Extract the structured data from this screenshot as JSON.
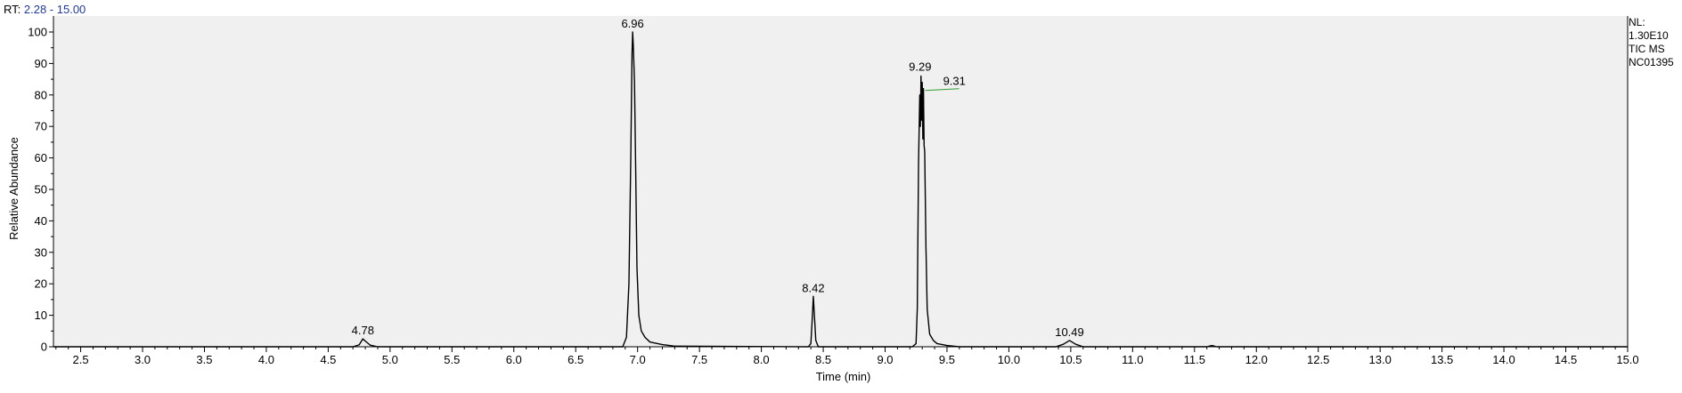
{
  "header": {
    "rt_prefix": "RT:",
    "rt_range": "2.28 - 15.00"
  },
  "info": {
    "nl_label": "NL:",
    "nl_value": "1.30E10",
    "scan_filter": "TIC  MS",
    "file_name": "NC01395"
  },
  "colors": {
    "plot_background": "#f0f0f0",
    "trace": "#000000",
    "annotation_line": "#2e9e2e",
    "rt_range_text": "#1f3a9e"
  },
  "chart_data": {
    "type": "line",
    "xlabel": "Time (min)",
    "ylabel": "Relative Abundance",
    "xlim": [
      2.28,
      15.0
    ],
    "ylim": [
      0,
      100
    ],
    "x_ticks": [
      "2.5",
      "3.0",
      "3.5",
      "4.0",
      "4.5",
      "5.0",
      "5.5",
      "6.0",
      "6.5",
      "7.0",
      "7.5",
      "8.0",
      "8.5",
      "9.0",
      "9.5",
      "10.0",
      "10.5",
      "11.0",
      "11.5",
      "12.0",
      "12.5",
      "13.0",
      "13.5",
      "14.0",
      "14.5",
      "15.0"
    ],
    "y_ticks": [
      "0",
      "10",
      "20",
      "30",
      "40",
      "50",
      "60",
      "70",
      "80",
      "90",
      "100"
    ],
    "grid": false,
    "peak_labels": [
      {
        "rt": "4.78",
        "x": 4.78,
        "y": 2.5
      },
      {
        "rt": "6.96",
        "x": 6.96,
        "y": 100
      },
      {
        "rt": "8.42",
        "x": 8.42,
        "y": 16
      },
      {
        "rt": "9.29",
        "x": 9.29,
        "y": 86
      },
      {
        "rt": "9.31",
        "x": 9.31,
        "y": 82
      },
      {
        "rt": "10.49",
        "x": 10.49,
        "y": 2
      }
    ],
    "series": [
      {
        "x": [
          2.28,
          4.7,
          4.75,
          4.78,
          4.8,
          4.84,
          4.9,
          6.88,
          6.91,
          6.93,
          6.945,
          6.955,
          6.96,
          6.965,
          6.975,
          6.985,
          6.995,
          7.01,
          7.03,
          7.06,
          7.1,
          7.2,
          7.3,
          8.38,
          8.4,
          8.41,
          8.42,
          8.43,
          8.44,
          8.46,
          9.22,
          9.25,
          9.26,
          9.27,
          9.28,
          9.285,
          9.29,
          9.295,
          9.3,
          9.305,
          9.31,
          9.315,
          9.32,
          9.33,
          9.34,
          9.36,
          9.39,
          9.42,
          9.5,
          9.6,
          10.38,
          10.44,
          10.49,
          10.54,
          10.6,
          11.6,
          11.64,
          11.68,
          15.0
        ],
        "y": [
          0,
          0,
          0.6,
          2.5,
          1.8,
          0.5,
          0,
          0,
          3,
          20,
          60,
          93,
          100,
          96,
          84,
          55,
          25,
          10,
          5,
          3,
          1.5,
          0.7,
          0.2,
          0,
          1,
          8,
          16,
          9,
          2,
          0,
          0,
          1,
          12,
          58,
          80,
          70,
          86,
          72,
          84,
          66,
          82,
          64,
          62,
          32,
          12,
          4,
          2,
          1,
          0.4,
          0,
          0,
          0.8,
          2,
          0.8,
          0,
          0,
          0.4,
          0,
          0
        ]
      }
    ]
  }
}
